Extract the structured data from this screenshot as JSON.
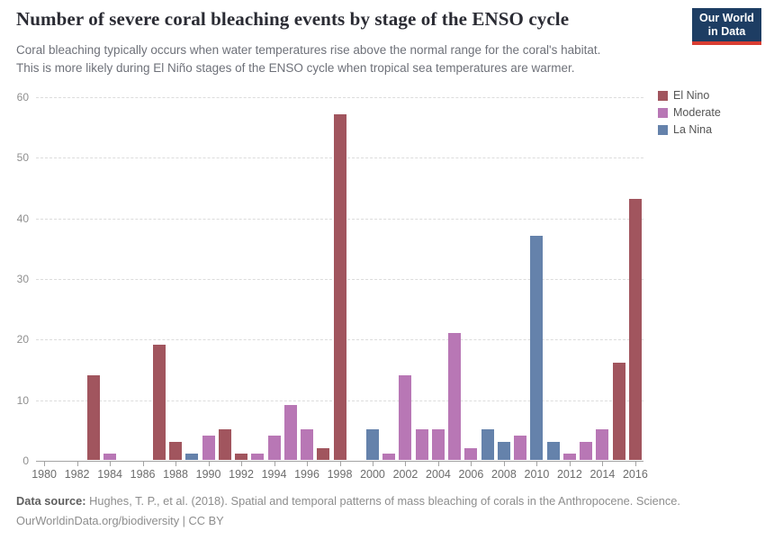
{
  "header": {
    "title": "Number of severe coral bleaching events by stage of the ENSO cycle",
    "subtitle_lines": [
      "Coral bleaching typically occurs when water temperatures rise above the normal range for the coral's habitat.",
      "This is more likely during El Niño stages of the ENSO cycle when tropical sea temperatures are warmer."
    ],
    "logo": {
      "line1": "Our World",
      "line2": "in Data",
      "bg_color": "#1d3d63",
      "stripe_color": "#d93d32"
    }
  },
  "legend": {
    "position": "top-right",
    "items": [
      {
        "label": "El Nino",
        "color": "#A1555E"
      },
      {
        "label": "Moderate",
        "color": "#B877B5"
      },
      {
        "label": "La Nina",
        "color": "#6582AB"
      }
    ]
  },
  "chart_data": {
    "type": "bar",
    "title": "Number of severe coral bleaching events by stage of the ENSO cycle",
    "xlabel": "",
    "ylabel": "",
    "ylim": [
      0,
      60
    ],
    "yticks": [
      0,
      10,
      20,
      30,
      40,
      50,
      60
    ],
    "grid": "horizontal-dashed",
    "legend_position": "top-right",
    "x": [
      1980,
      1981,
      1982,
      1983,
      1984,
      1985,
      1986,
      1987,
      1988,
      1989,
      1990,
      1991,
      1992,
      1993,
      1994,
      1995,
      1996,
      1997,
      1998,
      1999,
      2000,
      2001,
      2002,
      2003,
      2004,
      2005,
      2006,
      2007,
      2008,
      2009,
      2010,
      2011,
      2012,
      2013,
      2014,
      2015,
      2016
    ],
    "values": [
      0,
      0,
      0,
      14,
      1,
      0,
      0,
      19,
      3,
      1,
      4,
      5,
      1,
      1,
      4,
      9,
      5,
      2,
      57,
      0,
      5,
      1,
      14,
      5,
      5,
      21,
      2,
      5,
      3,
      4,
      37,
      3,
      1,
      3,
      5,
      16,
      43
    ],
    "stages": [
      null,
      null,
      null,
      "El Nino",
      "Moderate",
      null,
      null,
      "El Nino",
      "El Nino",
      "La Nina",
      "Moderate",
      "El Nino",
      "El Nino",
      "Moderate",
      "Moderate",
      "Moderate",
      "Moderate",
      "El Nino",
      "El Nino",
      null,
      "La Nina",
      "Moderate",
      "Moderate",
      "Moderate",
      "Moderate",
      "Moderate",
      "Moderate",
      "La Nina",
      "La Nina",
      "Moderate",
      "La Nina",
      "La Nina",
      "Moderate",
      "Moderate",
      "Moderate",
      "El Nino",
      "El Nino"
    ],
    "xtick_labels": [
      1980,
      1982,
      1984,
      1986,
      1988,
      1990,
      1992,
      1994,
      1996,
      1998,
      2000,
      2002,
      2004,
      2006,
      2008,
      2010,
      2012,
      2014,
      2016
    ]
  },
  "footer": {
    "source_label": "Data source:",
    "source_text": "Hughes, T. P., et al. (2018). Spatial and temporal patterns of mass bleaching of corals in the Anthropocene. Science.",
    "license_line": "OurWorldinData.org/biodiversity | CC BY"
  }
}
